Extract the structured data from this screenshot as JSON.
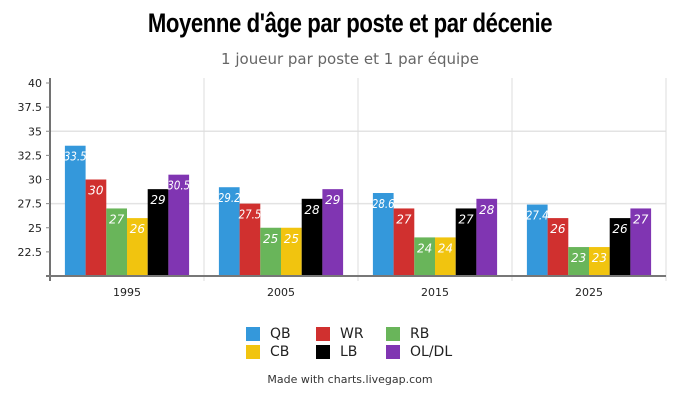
{
  "chart_data": {
    "type": "bar",
    "title": "Moyenne d'âge par poste et par décenie",
    "subtitle": "1 joueur par poste et 1 par équipe",
    "categories": [
      "1995",
      "2005",
      "2015",
      "2025"
    ],
    "ylim": [
      20,
      40
    ],
    "yticks": [
      "40",
      "37.5",
      "35",
      "32.5",
      "30",
      "27.5",
      "25",
      "22.5"
    ],
    "ytick_values": [
      40,
      37.5,
      35,
      32.5,
      30,
      27.5,
      25,
      22.5
    ],
    "series": [
      {
        "name": "QB",
        "color": "#3498db",
        "values": [
          33.5,
          29.2,
          28.6,
          27.4
        ],
        "labels": [
          "33.5",
          "29.2",
          "28.6",
          "27.4"
        ]
      },
      {
        "name": "WR",
        "color": "#d0302f",
        "values": [
          30,
          27.5,
          27,
          26
        ],
        "labels": [
          "30",
          "27.5",
          "27",
          "26"
        ]
      },
      {
        "name": "RB",
        "color": "#69b55a",
        "values": [
          27,
          25,
          24,
          23
        ],
        "labels": [
          "27",
          "25",
          "24",
          "23"
        ]
      },
      {
        "name": "CB",
        "color": "#f1c40f",
        "values": [
          26,
          25,
          24,
          23
        ],
        "labels": [
          "26",
          "25",
          "24",
          "23"
        ]
      },
      {
        "name": "LB",
        "color": "#000000",
        "values": [
          29,
          28,
          27,
          26
        ],
        "labels": [
          "29",
          "28",
          "27",
          "26"
        ]
      },
      {
        "name": "OL/DL",
        "color": "#8035b2",
        "values": [
          30.5,
          29,
          28,
          27
        ],
        "labels": [
          "30.5",
          "29",
          "28",
          "27"
        ]
      }
    ],
    "legend": "bottom"
  },
  "footer": "Made with charts.livegap.com"
}
